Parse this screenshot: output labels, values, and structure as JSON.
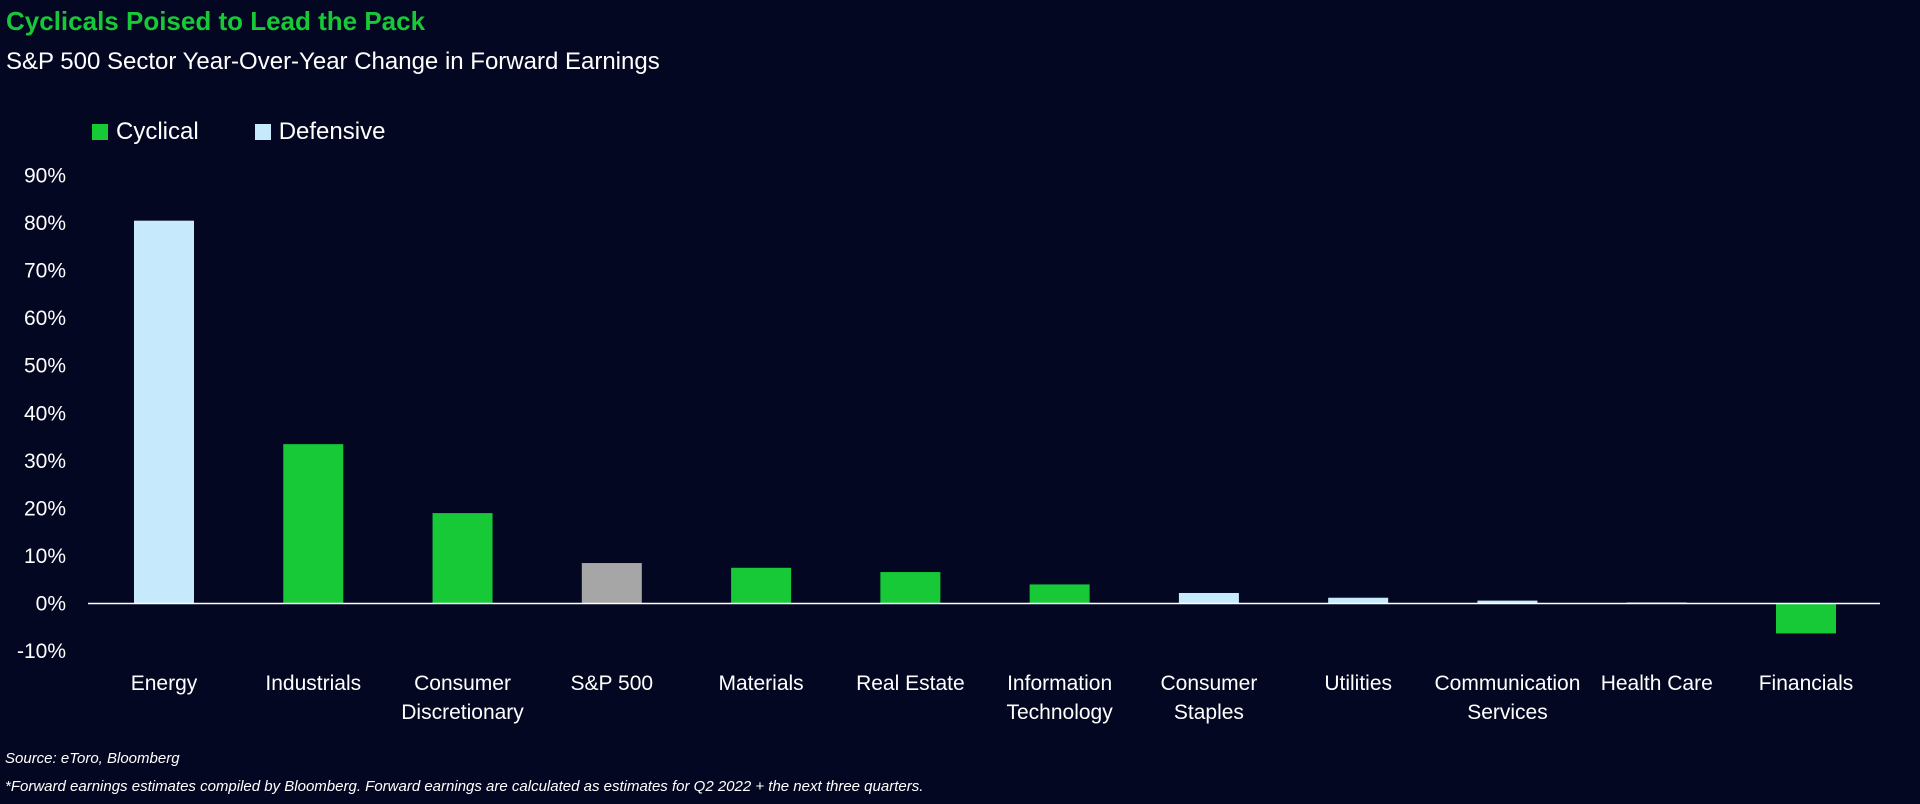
{
  "title": "Cyclicals Poised to Lead the Pack",
  "subtitle": "S&P 500 Sector Year-Over-Year Change in Forward Earnings",
  "source": "Source: eToro, Bloomberg",
  "footnote": "*Forward earnings estimates compiled by Bloomberg. Forward earnings are calculated as estimates for Q2 2022 + the next three quarters.",
  "colors": {
    "background": "#040722",
    "cyclical": "#17c937",
    "defensive": "#c6e9fb",
    "benchmark": "#a6a6a6",
    "title": "#17c937",
    "text": "#ffffff"
  },
  "legend": [
    {
      "label": "Cyclical",
      "color": "#17c937"
    },
    {
      "label": "Defensive",
      "color": "#c6e9fb"
    }
  ],
  "chart_data": {
    "type": "bar",
    "title": "Cyclicals Poised to Lead the Pack",
    "subtitle": "S&P 500 Sector Year-Over-Year Change in Forward Earnings",
    "xlabel": "",
    "ylabel": "",
    "ylim": [
      -10,
      90
    ],
    "yticks": [
      -10,
      0,
      10,
      20,
      30,
      40,
      50,
      60,
      70,
      80,
      90
    ],
    "ytick_labels": [
      "-10%",
      "0%",
      "10%",
      "20%",
      "30%",
      "40%",
      "50%",
      "60%",
      "70%",
      "80%",
      "90%"
    ],
    "grid": false,
    "legend_position": "top-left",
    "categories": [
      "Energy",
      "Industrials",
      "Consumer Discretionary",
      "S&P 500",
      "Materials",
      "Real Estate",
      "Information Technology",
      "Consumer Staples",
      "Utilities",
      "Communication Services",
      "Health Care",
      "Financials"
    ],
    "category_labels": [
      [
        "Energy"
      ],
      [
        "Industrials"
      ],
      [
        "Consumer",
        "Discretionary"
      ],
      [
        "S&P 500"
      ],
      [
        "Materials"
      ],
      [
        "Real Estate"
      ],
      [
        "Information",
        "Technology"
      ],
      [
        "Consumer",
        "Staples"
      ],
      [
        "Utilities"
      ],
      [
        "Communication",
        "Services"
      ],
      [
        "Health Care"
      ],
      [
        "Financials"
      ]
    ],
    "values": [
      80.5,
      33.5,
      19.0,
      8.5,
      7.5,
      6.6,
      4.0,
      2.2,
      1.2,
      0.6,
      0.2,
      -6.3
    ],
    "groups": [
      "Defensive",
      "Cyclical",
      "Cyclical",
      "Benchmark",
      "Cyclical",
      "Cyclical",
      "Cyclical",
      "Defensive",
      "Defensive",
      "Defensive",
      "Defensive",
      "Cyclical"
    ]
  }
}
